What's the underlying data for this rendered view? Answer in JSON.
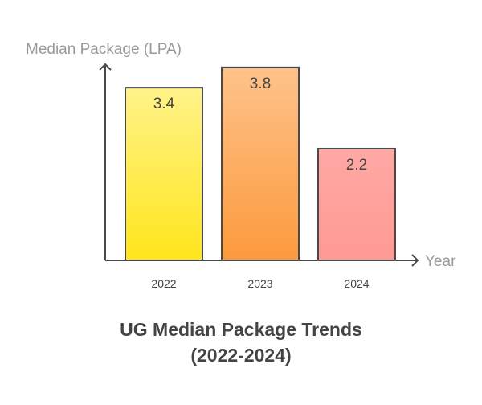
{
  "chart_data": {
    "type": "bar",
    "title": "UG Median Package Trends (2022-2024)",
    "xlabel": "Year",
    "ylabel": "Median Package (LPA)",
    "categories": [
      "2022",
      "2023",
      "2024"
    ],
    "values": [
      3.4,
      3.8,
      2.2
    ],
    "data_labels": [
      "3.4",
      "3.8",
      "2.2"
    ],
    "ylim": [
      0,
      4
    ],
    "grid": false,
    "colors": [
      [
        "#fff389",
        "#ffe51c"
      ],
      [
        "#ffc28a",
        "#fb9a3c"
      ],
      [
        "#ffa8a4",
        "#ff9a93"
      ]
    ],
    "border_color": "#4a4a4a"
  }
}
